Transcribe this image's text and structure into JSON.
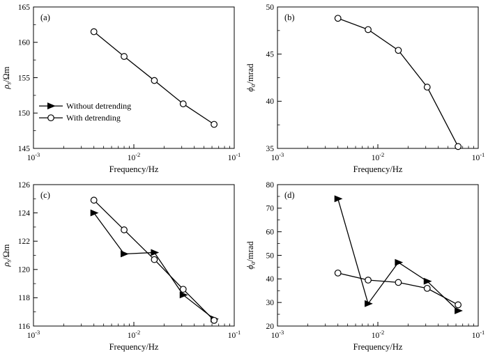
{
  "figure": {
    "background": "#ffffff",
    "line_color": "#000000",
    "marker_fill_open": "#ffffff"
  },
  "legend": {
    "items": [
      {
        "label": "Without detrending",
        "marker": "triangle"
      },
      {
        "label": "With detrending",
        "marker": "circle"
      }
    ]
  },
  "chart_data": [
    {
      "id": "a",
      "type": "line",
      "panel_label": "(a)",
      "xlabel": "Frequency/Hz",
      "ylabel": {
        "symbol": "ρ",
        "subscript": "s",
        "unit": "/Ωm"
      },
      "x_scale": "log",
      "xlim": [
        0.001,
        0.1
      ],
      "ylim": [
        145,
        165
      ],
      "yticks": [
        145,
        150,
        155,
        160,
        165
      ],
      "xticks": [
        {
          "value": 0.001,
          "label_base": "10",
          "label_exp": "-3"
        },
        {
          "value": 0.01,
          "label_base": "10",
          "label_exp": "-2"
        },
        {
          "value": 0.1,
          "label_base": "10",
          "label_exp": "-1"
        }
      ],
      "x": [
        0.004,
        0.008,
        0.016,
        0.031,
        0.063
      ],
      "series": [
        {
          "name": "With detrending",
          "marker": "circle",
          "values": [
            161.5,
            158.0,
            154.6,
            151.3,
            148.4
          ]
        }
      ],
      "show_legend": true
    },
    {
      "id": "b",
      "type": "line",
      "panel_label": "(b)",
      "xlabel": "Frequency/Hz",
      "ylabel": {
        "symbol": "ϕ",
        "subscript": "a",
        "unit": "/mrad"
      },
      "x_scale": "log",
      "xlim": [
        0.001,
        0.1
      ],
      "ylim": [
        35,
        50
      ],
      "yticks": [
        35,
        40,
        45,
        50
      ],
      "xticks": [
        {
          "value": 0.001,
          "label_base": "10",
          "label_exp": "-3"
        },
        {
          "value": 0.01,
          "label_base": "10",
          "label_exp": "-2"
        },
        {
          "value": 0.1,
          "label_base": "10",
          "label_exp": "-1"
        }
      ],
      "x": [
        0.004,
        0.008,
        0.016,
        0.031,
        0.063
      ],
      "series": [
        {
          "name": "With detrending",
          "marker": "circle",
          "values": [
            48.8,
            47.6,
            45.4,
            41.5,
            35.2
          ]
        }
      ],
      "show_legend": false
    },
    {
      "id": "c",
      "type": "line",
      "panel_label": "(c)",
      "xlabel": "Frequency/Hz",
      "ylabel": {
        "symbol": "ρ",
        "subscript": "s",
        "unit": "/Ωm"
      },
      "x_scale": "log",
      "xlim": [
        0.001,
        0.1
      ],
      "ylim": [
        116,
        126
      ],
      "yticks": [
        116,
        118,
        120,
        122,
        124,
        126
      ],
      "xticks": [
        {
          "value": 0.001,
          "label_base": "10",
          "label_exp": "-3"
        },
        {
          "value": 0.01,
          "label_base": "10",
          "label_exp": "-2"
        },
        {
          "value": 0.1,
          "label_base": "10",
          "label_exp": "-1"
        }
      ],
      "x": [
        0.004,
        0.008,
        0.016,
        0.031,
        0.063
      ],
      "series": [
        {
          "name": "Without detrending",
          "marker": "triangle",
          "values": [
            124.0,
            121.1,
            121.2,
            118.2,
            116.5
          ]
        },
        {
          "name": "With detrending",
          "marker": "circle",
          "values": [
            124.9,
            122.8,
            120.7,
            118.6,
            116.4
          ]
        }
      ],
      "show_legend": false
    },
    {
      "id": "d",
      "type": "line",
      "panel_label": "(d)",
      "xlabel": "Frequency/Hz",
      "ylabel": {
        "symbol": "ϕ",
        "subscript": "a",
        "unit": "/mrad"
      },
      "x_scale": "log",
      "xlim": [
        0.001,
        0.1
      ],
      "ylim": [
        20,
        80
      ],
      "yticks": [
        20,
        30,
        40,
        50,
        60,
        70,
        80
      ],
      "xticks": [
        {
          "value": 0.001,
          "label_base": "10",
          "label_exp": "-3"
        },
        {
          "value": 0.01,
          "label_base": "10",
          "label_exp": "-2"
        },
        {
          "value": 0.1,
          "label_base": "10",
          "label_exp": "-1"
        }
      ],
      "x": [
        0.004,
        0.008,
        0.016,
        0.031,
        0.063
      ],
      "series": [
        {
          "name": "Without detrending",
          "marker": "triangle",
          "values": [
            74.0,
            29.5,
            47.0,
            39.0,
            26.5
          ]
        },
        {
          "name": "With detrending",
          "marker": "circle",
          "values": [
            42.5,
            39.5,
            38.5,
            36.0,
            29.0
          ]
        }
      ],
      "show_legend": false
    }
  ]
}
